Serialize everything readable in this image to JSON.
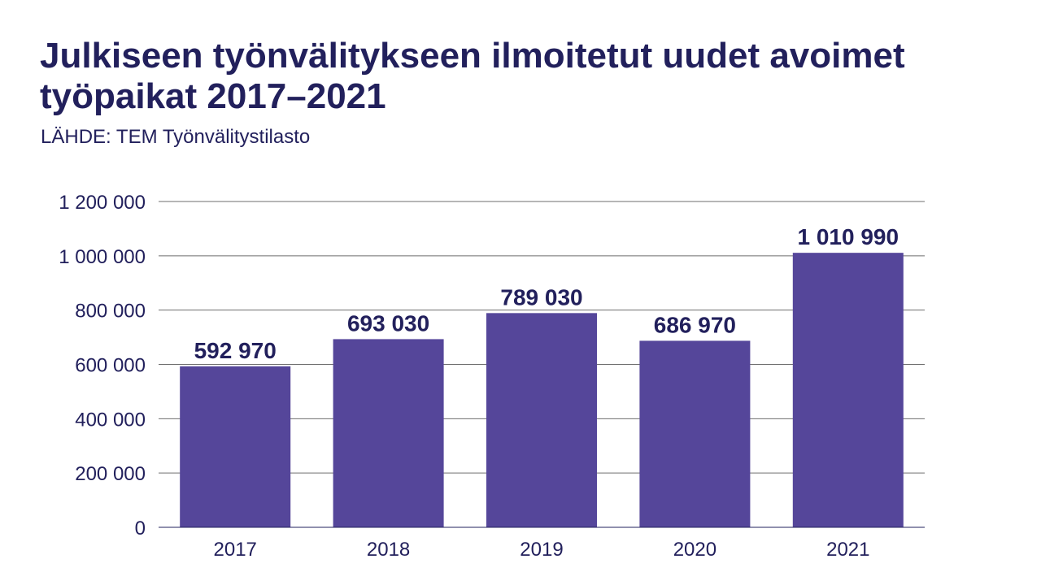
{
  "chart_data": {
    "type": "bar",
    "title": "Julkiseen työnvälitykseen ilmoitetut uudet avoimet työpaikat 2017–2021",
    "subtitle": "LÄHDE: TEM Työnvälitystilasto",
    "categories": [
      "2017",
      "2018",
      "2019",
      "2020",
      "2021"
    ],
    "values": [
      592970,
      693030,
      789030,
      686970,
      1010990
    ],
    "value_labels": [
      "592 970",
      "693 030",
      "789 030",
      "686 970",
      "1 010 990"
    ],
    "xlabel": "",
    "ylabel": "",
    "ylim": [
      0,
      1200000
    ],
    "yticks": [
      0,
      200000,
      400000,
      600000,
      800000,
      1000000,
      1200000
    ],
    "ytick_labels": [
      "0",
      "200 000",
      "400 000",
      "600 000",
      "800 000",
      "1 000 000",
      "1 200 000"
    ],
    "grid": true,
    "colors": {
      "bar": "#55469a",
      "text": "#22205c",
      "grid": "#6e6e6e"
    }
  }
}
